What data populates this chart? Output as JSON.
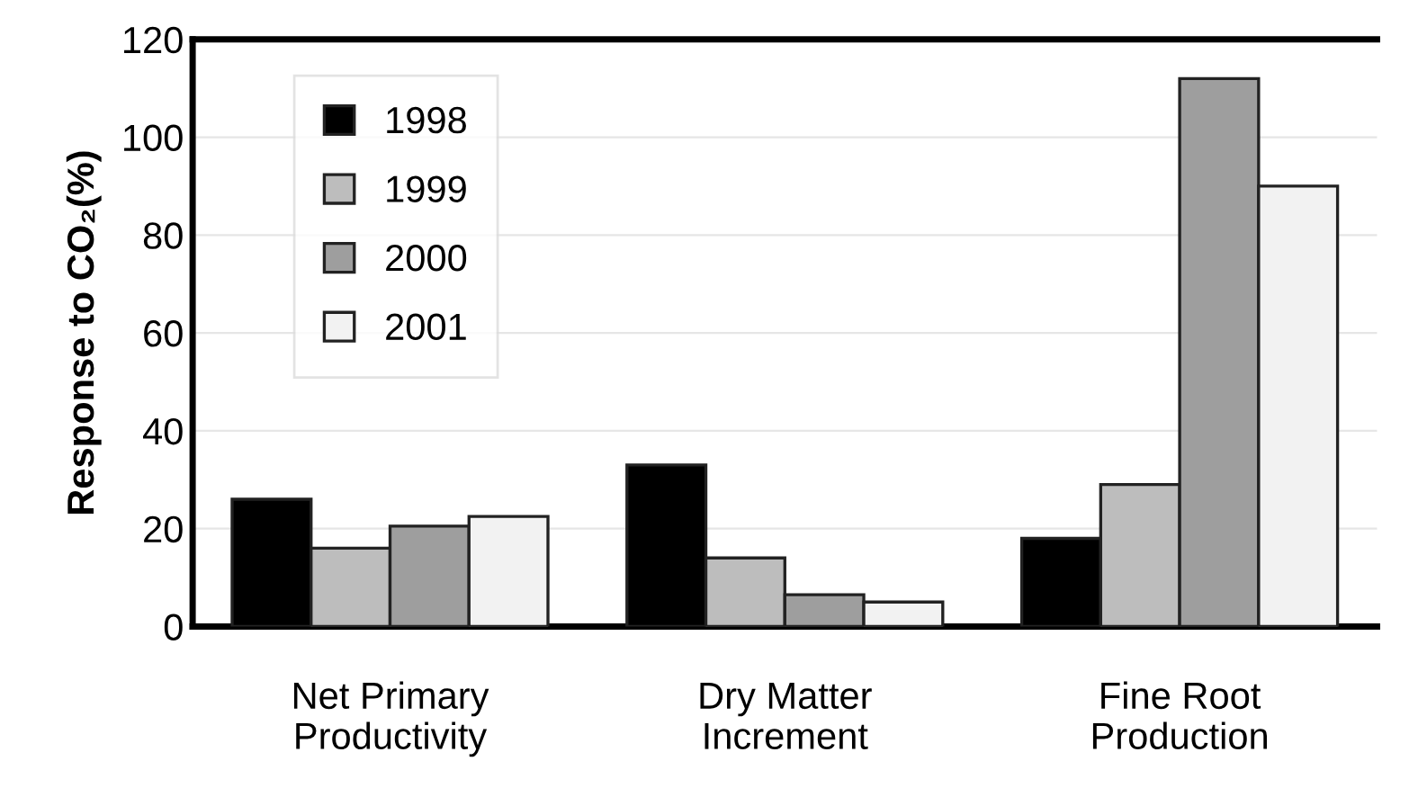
{
  "chart_data": {
    "type": "bar",
    "ylabel": "Response to CO₂(%)",
    "categories": [
      "Net Primary\nProductivity",
      "Dry Matter\nIncrement",
      "Fine Root\nProduction"
    ],
    "series": [
      {
        "name": "1998",
        "color": "#000000",
        "values": [
          26,
          33,
          18
        ]
      },
      {
        "name": "1999",
        "color": "#bdbdbd",
        "values": [
          16,
          14,
          29
        ]
      },
      {
        "name": "2000",
        "color": "#9e9e9e",
        "values": [
          20.5,
          6.5,
          112
        ]
      },
      {
        "name": "2001",
        "color": "#f2f2f2",
        "values": [
          22.5,
          5,
          90
        ]
      }
    ],
    "ylim": [
      0,
      120
    ],
    "yticks": [
      0,
      20,
      40,
      60,
      80,
      100,
      120
    ],
    "grid": "y",
    "legend": "top left"
  }
}
